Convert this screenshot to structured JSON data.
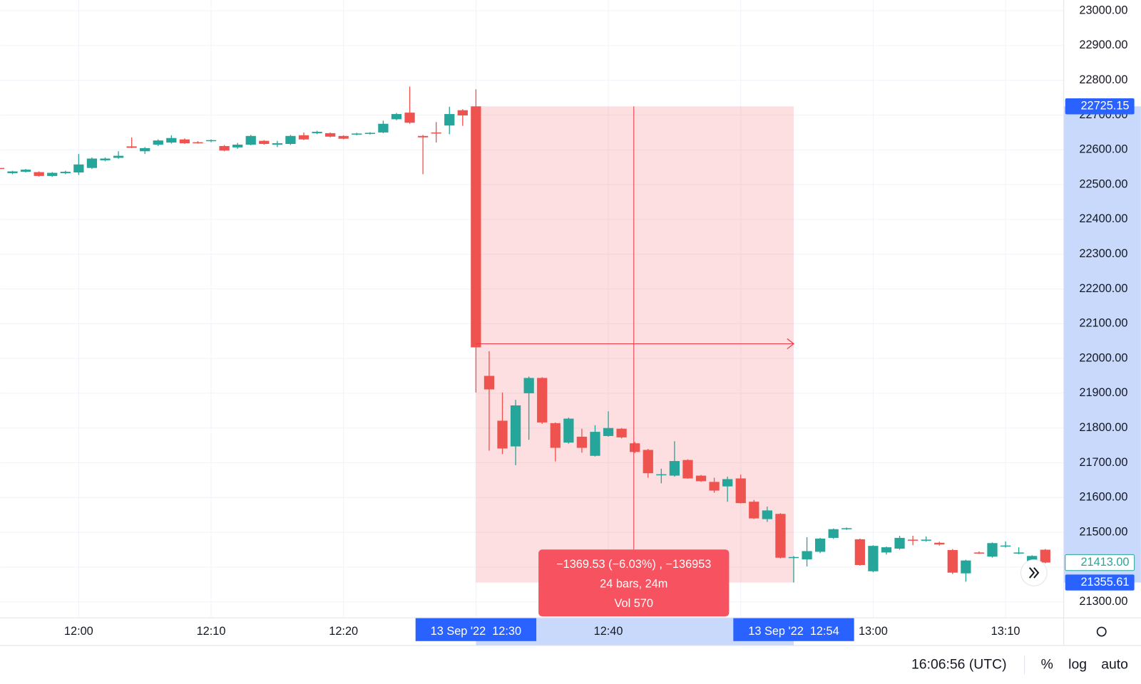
{
  "chart_data": {
    "type": "candlestick",
    "categories": [
      null,
      null,
      null,
      null,
      null,
      null,
      "12:00",
      null,
      null,
      null,
      null,
      null,
      null,
      null,
      null,
      null,
      "12:10",
      null,
      null,
      null,
      null,
      null,
      null,
      null,
      null,
      null,
      "12:20",
      null,
      null,
      null,
      null,
      null,
      null,
      null,
      null,
      null,
      null,
      null,
      null,
      null,
      null,
      null,
      null,
      null,
      null,
      null,
      "12:40",
      null,
      null,
      null,
      null,
      null,
      null,
      null,
      null,
      null,
      null,
      null,
      null,
      null,
      null,
      null,
      null,
      null,
      null,
      null,
      "13:00",
      null,
      null,
      null,
      null,
      null,
      null,
      null,
      null,
      null,
      "13:10",
      null,
      null,
      null
    ],
    "open": [
      22548,
      22533,
      22537,
      22536,
      22525,
      22533,
      22535,
      22548,
      22570,
      22577,
      22610,
      22596,
      22615,
      22621,
      22630,
      22622,
      22625,
      22611,
      22607,
      22615,
      22626,
      22615,
      22617,
      22642,
      22648,
      22648,
      22640,
      22644,
      22646,
      22650,
      22688,
      22707,
      22640,
      22650,
      22670,
      22714,
      22725.15,
      21950,
      21821,
      21747,
      21900,
      21944,
      21814,
      21758,
      21775,
      21720,
      21777,
      21798,
      21756,
      21737,
      21665,
      21663,
      21708,
      21663,
      21645,
      21632,
      21655,
      21588,
      21538,
      21553,
      21427,
      21422,
      21444,
      21484,
      21510,
      21480,
      21388,
      21442,
      21453,
      21479,
      21476,
      21470,
      21449,
      21382,
      21442,
      21430,
      21459,
      21440,
      21411,
      21450
    ],
    "high": [
      22550,
      22540,
      22545,
      22538,
      22536,
      22540,
      22588,
      22578,
      22578,
      22596,
      22636,
      22608,
      22630,
      22642,
      22633,
      22625,
      22630,
      22614,
      22620,
      22643,
      22628,
      22626,
      22643,
      22650,
      22655,
      22650,
      22642,
      22649,
      22651,
      22684,
      22706,
      22782,
      22643,
      22680,
      22724,
      22717,
      22774,
      22021,
      21902,
      21881,
      21948,
      21946,
      21816,
      21830,
      21798,
      21808,
      21848,
      21800,
      21760,
      21740,
      21683,
      21762,
      21710,
      21665,
      21657,
      21660,
      21666,
      21593,
      21574,
      21555,
      21432,
      21486,
      21484,
      21511,
      21514,
      21482,
      21463,
      21459,
      21490,
      21490,
      21488,
      21473,
      21452,
      21421,
      21445,
      21471,
      21474,
      21457,
      21434,
      21452
    ],
    "low": [
      22543,
      22530,
      22535,
      22523,
      22522,
      22530,
      22528,
      22545,
      22567,
      22574,
      22605,
      22588,
      22611,
      22618,
      22617,
      22618,
      22622,
      22596,
      22603,
      22613,
      22615,
      22608,
      22614,
      22628,
      22645,
      22636,
      22630,
      22642,
      22644,
      22648,
      22685,
      22675,
      22530,
      22621,
      22645,
      22669,
      21902,
      21735,
      21725,
      21693,
      21766,
      21812,
      21704,
      21755,
      21729,
      21718,
      21775,
      21770,
      21728,
      21657,
      21641,
      21660,
      21654,
      21645,
      21614,
      21588,
      21583,
      21538,
      21530,
      21425,
      21355.61,
      21402,
      21440,
      21481,
      21507,
      21404,
      21385,
      21436,
      21450,
      21463,
      21473,
      21462,
      21380,
      21358,
      21438,
      21427,
      21456,
      21437,
      21408,
      21411
    ],
    "close": [
      22545,
      22538,
      22543,
      22525,
      22534,
      22537,
      22558,
      22575,
      22575,
      22583,
      22606,
      22605,
      22627,
      22634,
      22619,
      22620,
      22628,
      22598,
      22615,
      22640,
      22617,
      22619,
      22640,
      22630,
      22652,
      22638,
      22632,
      22647,
      22649,
      22675,
      22703,
      22678,
      22636,
      22649,
      22703,
      22699,
      22032,
      21911,
      21741,
      21865,
      21944,
      21816,
      21743,
      21827,
      21743,
      21789,
      21800,
      21773,
      21731,
      21670,
      21667,
      21705,
      21655,
      21647,
      21620,
      21653,
      21584,
      21540,
      21563,
      21427,
      21429,
      21446,
      21482,
      21509,
      21512,
      21406,
      21461,
      21457,
      21484,
      21477,
      21479,
      21465,
      21384,
      21419,
      21440,
      21469,
      21462,
      21442,
      21432,
      21413
    ],
    "up_color": "#26a69a",
    "down_color": "#ef5350",
    "ylim": [
      21254,
      23031
    ],
    "yticks": [
      {
        "value": 21300,
        "label": "21300.00"
      },
      {
        "value": 21400,
        "label": "21400.00"
      },
      {
        "value": 21500,
        "label": "21500.00"
      },
      {
        "value": 21600,
        "label": "21600.00"
      },
      {
        "value": 21700,
        "label": "21700.00"
      },
      {
        "value": 21800,
        "label": "21800.00"
      },
      {
        "value": 21900,
        "label": "21900.00"
      },
      {
        "value": 22000,
        "label": "22000.00"
      },
      {
        "value": 22100,
        "label": "22100.00"
      },
      {
        "value": 22200,
        "label": "22200.00"
      },
      {
        "value": 22300,
        "label": "22300.00"
      },
      {
        "value": 22400,
        "label": "22400.00"
      },
      {
        "value": 22500,
        "label": "22500.00"
      },
      {
        "value": 22600,
        "label": "22600.00"
      },
      {
        "value": 22700,
        "label": "22700.00"
      },
      {
        "value": 22800,
        "label": "22800.00"
      },
      {
        "value": 22900,
        "label": "22900.00"
      },
      {
        "value": 23000,
        "label": "23000.00"
      }
    ],
    "grid": true,
    "price_labels": [
      22725.15,
      {
        "value": 21413,
        "label": "21413.00"
      },
      21355.61
    ],
    "measure": {
      "from": 22725.15,
      "to": 21355.61,
      "lines": [
        "−1369.53 (−6.03%) , −136953",
        "24 bars, 24m",
        "Vol 570"
      ]
    },
    "range_labels": [
      "13 Sep '22  12:30",
      "13 Sep '22  12:54"
    ]
  },
  "footer": {
    "clock": "16:06:56 (UTC)",
    "buttons": [
      "%",
      "log",
      "auto"
    ]
  }
}
